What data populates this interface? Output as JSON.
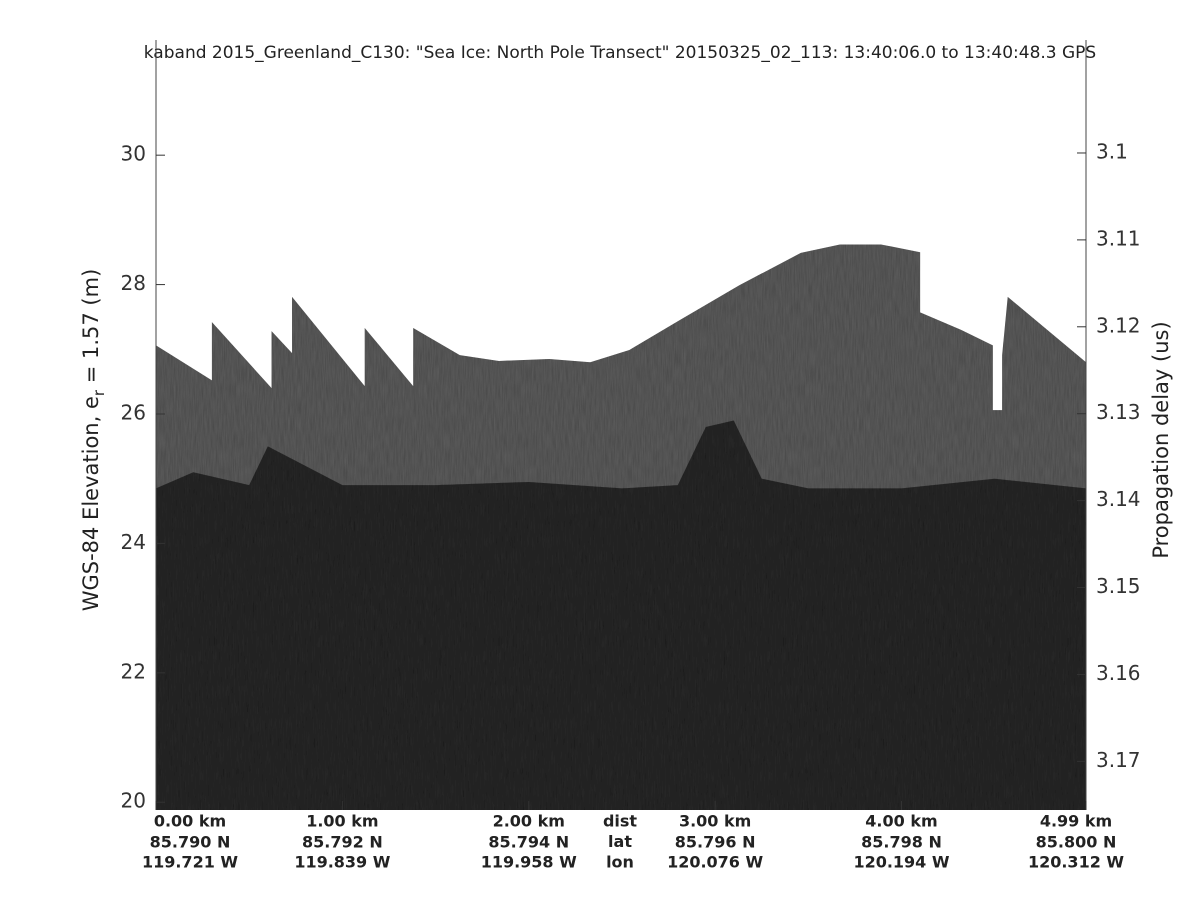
{
  "chart_data": {
    "type": "area",
    "title": "kaband 2015_Greenland_C130: \"Sea Ice: North Pole Transect\"  20150325_02_113: 13:40:06.0 to 13:40:48.3 GPS",
    "ylabel": "WGS-84 Elevation, e",
    "ylabel_sub": "r",
    "ylabel_tail": " = 1.57 (m)",
    "y2label": "Propagation delay (us)",
    "xlim": [
      0,
      4.99
    ],
    "ylim": [
      19.88,
      31.78
    ],
    "yticks": [
      20,
      22,
      24,
      26,
      28,
      30
    ],
    "y2lim": [
      3.1756,
      3.087
    ],
    "y2ticks": [
      3.1,
      3.11,
      3.12,
      3.13,
      3.14,
      3.15,
      3.16,
      3.17
    ],
    "xticks": [
      {
        "value": 0,
        "label": "0.00 km"
      },
      {
        "value": 1,
        "label": "1.00 km"
      },
      {
        "value": 2,
        "label": "2.00 km"
      },
      {
        "value": 3,
        "label": "3.00 km"
      },
      {
        "value": 4,
        "label": "4.00 km"
      },
      {
        "value": 4.99,
        "label": "4.99 km"
      }
    ],
    "lat_labels": [
      "85.790 N",
      "85.792 N",
      "85.794 N",
      "85.796 N",
      "85.798 N",
      "85.800 N"
    ],
    "lon_labels": [
      "119.721 W",
      "119.839 W",
      "119.958 W",
      "120.076 W",
      "120.194 W",
      "120.312 W"
    ],
    "row_labels": [
      "dist",
      "lat",
      "lon"
    ],
    "surface": {
      "color": "#5e5e5e",
      "x": [
        0,
        0.3,
        0.3,
        0.62,
        0.62,
        0.73,
        0.73,
        1.12,
        1.12,
        1.38,
        1.38,
        1.63,
        1.84,
        2.11,
        2.33,
        2.54,
        2.81,
        3.13,
        3.46,
        3.67,
        3.89,
        4.1,
        4.1,
        4.32,
        4.49,
        4.49,
        4.54,
        4.54,
        4.57,
        4.99
      ],
      "values": [
        27.06,
        26.52,
        27.42,
        26.4,
        27.28,
        26.94,
        27.81,
        26.43,
        27.33,
        26.43,
        27.33,
        26.91,
        26.82,
        26.85,
        26.8,
        26.99,
        27.45,
        27.99,
        28.49,
        28.62,
        28.62,
        28.5,
        27.57,
        27.3,
        27.06,
        26.06,
        26.06,
        26.91,
        27.81,
        26.8
      ]
    },
    "subsurface": {
      "color": "#2c2c2c",
      "x": [
        0,
        0.2,
        0.5,
        0.6,
        1.0,
        1.5,
        2.0,
        2.5,
        2.8,
        2.95,
        3.1,
        3.25,
        3.5,
        4.0,
        4.5,
        4.99
      ],
      "values": [
        24.85,
        25.1,
        24.9,
        25.5,
        24.9,
        24.9,
        24.95,
        24.85,
        24.9,
        25.8,
        25.9,
        25.0,
        24.85,
        24.85,
        25.0,
        24.85
      ]
    }
  }
}
